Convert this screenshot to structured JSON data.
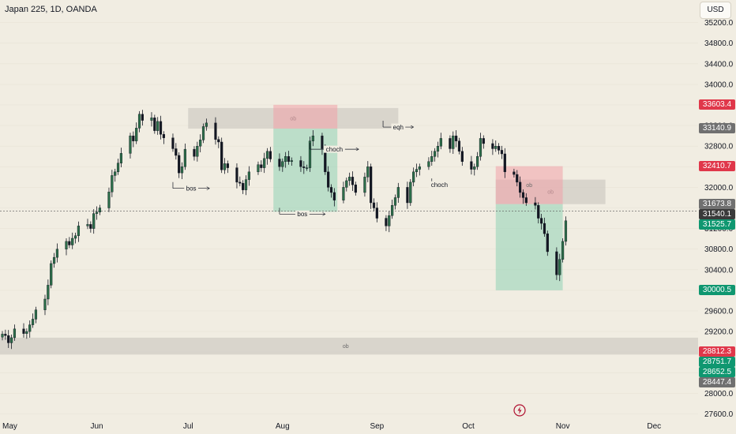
{
  "title": "Japan 225, 1D, OANDA",
  "currency_button": "USD",
  "colors": {
    "background": "#f1ede2",
    "bull": "#2c6e49",
    "bear": "#131722",
    "red_label": "#e0374a",
    "green_label": "#0f9770",
    "grey_label": "#707070",
    "dark_label": "#3a3a3a",
    "ob_zone": "#d0ccc4",
    "premium_zone": "#f0a0a8",
    "discount_zone": "#8fd1b4"
  },
  "chart_data": {
    "type": "candlestick",
    "symbol": "Japan 225",
    "timeframe": "1D",
    "source": "OANDA",
    "ylim": [
      27500,
      35500
    ],
    "y_ticks": [
      27600,
      28000,
      28400,
      28800,
      29200,
      29600,
      30000,
      30400,
      30800,
      31200,
      31600,
      32000,
      32400,
      32800,
      33200,
      33600,
      34000,
      34400,
      34800,
      35200
    ],
    "y_tick_labels": [
      "27600.0",
      "28000.0",
      "28400.0",
      "28800.0",
      "29200.0",
      "29600.0",
      "30000.0",
      "30400.0",
      "30800.0",
      "31200.0",
      "31600.0",
      "32000.0",
      "32400.0",
      "32800.0",
      "33200.0",
      "33600.0",
      "34000.0",
      "34400.0",
      "34800.0",
      "35200.0"
    ],
    "x_labels": [
      "May",
      "Jun",
      "Jul",
      "Aug",
      "Sep",
      "Oct",
      "Nov",
      "Dec"
    ],
    "x_label_dates": [
      "2023-05-01",
      "2023-06-01",
      "2023-07-01",
      "2023-08-01",
      "2023-09-01",
      "2023-10-01",
      "2023-11-01",
      "2023-12-01"
    ],
    "close_series": [
      29150,
      29120,
      28980,
      29080,
      29250,
      29160,
      29200,
      29330,
      29440,
      29620,
      29830,
      30100,
      30520,
      30640,
      30800,
      30950,
      30880,
      31010,
      31060,
      31250,
      31280,
      31200,
      31490,
      31520,
      31600,
      31910,
      32230,
      32300,
      32470,
      32660,
      33000,
      32900,
      33150,
      33420,
      33300,
      33350,
      33100,
      33280,
      33030,
      32960,
      32750,
      32620,
      32280,
      32400,
      32740,
      32600,
      32800,
      32920,
      33180,
      33250,
      32930,
      32880,
      32340,
      32460,
      32380,
      32100,
      32080,
      31950,
      32150,
      32300,
      32440,
      32380,
      32560,
      32700,
      32550,
      32400,
      32500,
      32600,
      32500,
      32520,
      32400,
      32380,
      32380,
      32900,
      33000,
      32750,
      32300,
      32000,
      31900,
      31750,
      32000,
      32130,
      32200,
      32050,
      31900,
      32200,
      32400,
      31700,
      31600,
      31400,
      31250,
      31450,
      31650,
      31800,
      32000,
      31700,
      32100,
      32300,
      32350,
      32400,
      32500,
      32600,
      32700,
      32800,
      32950,
      32750,
      33000,
      32900,
      32700,
      32500,
      32350,
      32400,
      32600,
      32950,
      32850,
      32750,
      32800,
      32720,
      32650,
      32300,
      32250,
      32100,
      31900,
      31800,
      31700,
      31650,
      31400,
      31300,
      31100,
      30750,
      30300,
      30600,
      30950,
      31350
    ],
    "current_price": 31540.1,
    "price_labels": [
      {
        "value": 33603.4,
        "text": "33603.4",
        "kind": "red"
      },
      {
        "value": 33140.9,
        "text": "33140.9",
        "kind": "grey"
      },
      {
        "value": 32410.7,
        "text": "32410.7",
        "kind": "red"
      },
      {
        "value": 31673.8,
        "text": "31673.8",
        "kind": "grey"
      },
      {
        "value": 31540.1,
        "text": "31540.1",
        "kind": "dark"
      },
      {
        "value": 31525.7,
        "text": "31525.7",
        "kind": "green"
      },
      {
        "value": 30000.5,
        "text": "30000.5",
        "kind": "green"
      },
      {
        "value": 28812.3,
        "text": "28812.3",
        "kind": "red"
      },
      {
        "value": 28751.7,
        "text": "28751.7",
        "kind": "green"
      },
      {
        "value": 28652.5,
        "text": "28652.5",
        "kind": "green"
      },
      {
        "value": 28447.4,
        "text": "28447.4",
        "kind": "grey"
      }
    ],
    "zones": [
      {
        "label": "ob",
        "kind": "ob",
        "date_from": "2023-07-01",
        "date_to": "2023-09-08",
        "price_from": 33140.9,
        "price_to": 33540
      },
      {
        "label": "",
        "kind": "premium",
        "date_from": "2023-07-29",
        "date_to": "2023-08-19",
        "price_from": 33140.9,
        "price_to": 33603.4
      },
      {
        "label": "",
        "kind": "discount",
        "date_from": "2023-07-29",
        "date_to": "2023-08-19",
        "price_from": 31525.7,
        "price_to": 33140.9
      },
      {
        "label": "ob",
        "kind": "ob",
        "date_from": "2023-10-10",
        "date_to": "2023-11-15",
        "price_from": 31673.8,
        "price_to": 32150
      },
      {
        "label": "ob",
        "kind": "premium",
        "date_from": "2023-10-10",
        "date_to": "2023-11-01",
        "price_from": 31673.8,
        "price_to": 32410.7
      },
      {
        "label": "",
        "kind": "discount",
        "date_from": "2023-10-10",
        "date_to": "2023-11-01",
        "price_from": 30000.5,
        "price_to": 31673.8
      },
      {
        "label": "ob",
        "kind": "ob",
        "date_from": "2023-04-28",
        "date_to": "2023-12-31",
        "price_from": 28752,
        "price_to": 29080
      }
    ],
    "annotations": [
      {
        "text": "bos",
        "date_from": "2023-06-26",
        "date_to": "2023-07-08",
        "price": 31980
      },
      {
        "text": "bos",
        "date_from": "2023-07-31",
        "date_to": "2023-08-15",
        "price": 31480
      },
      {
        "text": "choch",
        "date_from": "2023-08-10",
        "date_to": "2023-08-26",
        "price": 32740
      },
      {
        "text": "choch",
        "date_from": "2023-09-19",
        "date_to": "2023-09-24",
        "price": 32050
      },
      {
        "text": "eqh",
        "date_from": "2023-09-03",
        "date_to": "2023-09-13",
        "price": 33170
      }
    ]
  }
}
